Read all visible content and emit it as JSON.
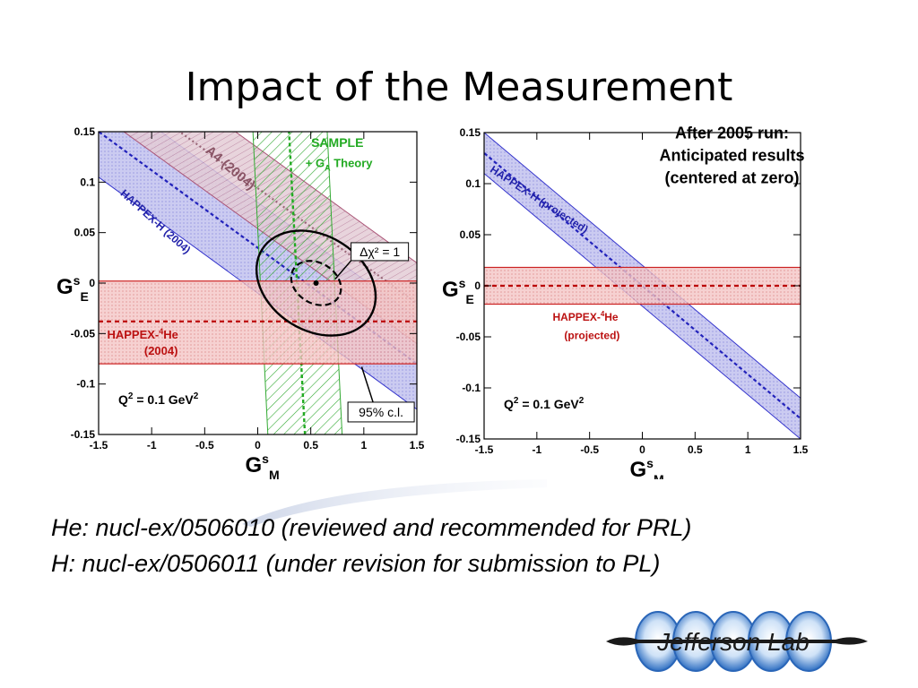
{
  "slide": {
    "title": "Impact of the Measurement",
    "citations": [
      "He: nucl-ex/0506010 (reviewed and recommended for PRL)",
      "H:  nucl-ex/0506011 (under revision for submission to PL)"
    ],
    "logo_text": "Jefferson Lab"
  },
  "chart_data": [
    {
      "type": "band",
      "xlim": [
        -1.5,
        1.5
      ],
      "ylim": [
        -0.15,
        0.15
      ],
      "x_ticks": [
        -1.5,
        -1,
        -0.5,
        0,
        0.5,
        1,
        1.5
      ],
      "y_ticks": [
        -0.15,
        -0.1,
        -0.05,
        0,
        0.05,
        0.1,
        0.15
      ],
      "x_tick_labels": [
        "-1.5",
        "-1",
        "-0.5",
        "0",
        "0.5",
        "1",
        "1.5"
      ],
      "y_tick_labels": [
        "-0.15",
        "-0.1",
        "-0.05",
        "0",
        "0.05",
        "0.1",
        "0.15"
      ],
      "xlabel": "G",
      "xlabel_sup": "s",
      "xlabel_sub": "M",
      "ylabel": "G",
      "ylabel_sup": "s",
      "ylabel_sub": "E",
      "series": [
        {
          "name": "HAPPEX-H (2004)",
          "kind": "diagonal-band",
          "color": "#3333cc",
          "center_line": [
            [
              -1.5,
              0.15
            ],
            [
              1.5,
              -0.08
            ]
          ],
          "half_width_y": 0.045
        },
        {
          "name": "A4 (2004)",
          "kind": "diagonal-band",
          "color": "#aa5577",
          "center_line": [
            [
              -1.0,
              0.17
            ],
            [
              1.5,
              -0.02
            ]
          ],
          "half_width_y": 0.04
        },
        {
          "name": "SAMPLE + G_A Theory",
          "kind": "vertical-band",
          "color": "#33aa33",
          "x_bottom": [
            0.1,
            0.8
          ],
          "x_top": [
            -0.05,
            0.65
          ],
          "center_x": 0.37
        },
        {
          "name": "HAPPEX-4He (2004)",
          "kind": "horizontal-band",
          "color": "#cc2222",
          "y_range": [
            -0.08,
            0.002
          ],
          "center_y": -0.038
        }
      ],
      "contours": [
        {
          "label": "95% c.l.",
          "center": [
            0.55,
            0.0
          ],
          "rx_data": 0.6,
          "ry_data": 0.047,
          "rotation_deg": 32,
          "style": "solid"
        },
        {
          "label": "Δχ² = 1",
          "center": [
            0.55,
            0.0
          ],
          "rx_data": 0.25,
          "ry_data": 0.02,
          "rotation_deg": 32,
          "style": "dashed"
        }
      ],
      "best_fit": [
        0.55,
        0.0
      ],
      "labels": {
        "sample": "SAMPLE",
        "sample_ga": "+ G",
        "sample_ga_sub": "A",
        "sample_theory": " Theory",
        "a4": "A4 (2004)",
        "happex_h": "HAPPEX-H (2004)",
        "happex_he_pre": "HAPPEX-",
        "happex_he_sup": "4",
        "happex_he_post": "He",
        "happex_he_year": "(2004)",
        "delta_chi": "Δχ² = 1",
        "cl": "95% c.l.",
        "q2": "Q",
        "q2_sup": "2",
        "q2_post": " = 0.1 GeV",
        "q2_unit_sup": "2"
      }
    },
    {
      "type": "band",
      "xlim": [
        -1.5,
        1.5
      ],
      "ylim": [
        -0.15,
        0.15
      ],
      "x_ticks": [
        -1.5,
        -1,
        -0.5,
        0,
        0.5,
        1,
        1.5
      ],
      "y_ticks": [
        -0.15,
        -0.1,
        -0.05,
        0,
        0.05,
        0.1,
        0.15
      ],
      "x_tick_labels": [
        "-1.5",
        "-1",
        "-0.5",
        "0",
        "0.5",
        "1",
        "1.5"
      ],
      "y_tick_labels": [
        "-0.15",
        "-0.1",
        "-0.05",
        "0",
        "0.05",
        "0.1",
        "0.15"
      ],
      "xlabel": "G",
      "xlabel_sup": "s",
      "xlabel_sub": "M",
      "ylabel": "G",
      "ylabel_sup": "s",
      "ylabel_sub": "E",
      "series": [
        {
          "name": "HAPPEX-H (projected)",
          "kind": "diagonal-band",
          "color": "#3333cc",
          "center_line": [
            [
              -1.5,
              0.13
            ],
            [
              1.5,
              -0.13
            ]
          ],
          "half_width_y": 0.02
        },
        {
          "name": "HAPPEX-4He (projected)",
          "kind": "horizontal-band",
          "color": "#cc2222",
          "y_range": [
            -0.018,
            0.018
          ],
          "center_y": 0.0
        }
      ],
      "labels": {
        "happex_h": "HAPPEX-H (projected)",
        "happex_he_pre": "HAPPEX-",
        "happex_he_sup": "4",
        "happex_he_post": "He",
        "happex_he_year": "(projected)",
        "after_1": "After 2005 run:",
        "after_2": "Anticipated results",
        "after_3": "(centered at zero)",
        "q2": "Q",
        "q2_sup": "2",
        "q2_post": " = 0.1 GeV",
        "q2_unit_sup": "2"
      }
    }
  ]
}
